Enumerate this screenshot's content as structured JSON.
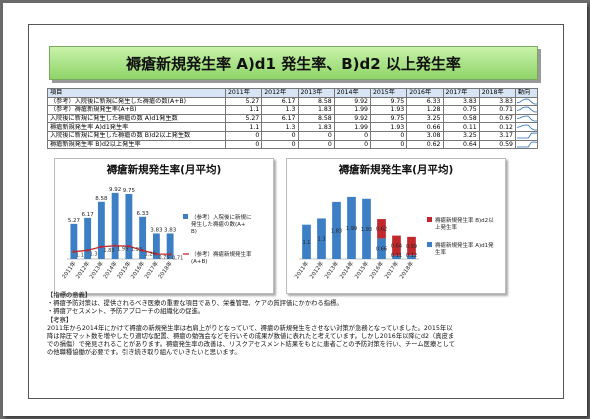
{
  "title": "褥瘡新規発生率 A)d1 発生率、B)d2 以上発生率",
  "table": {
    "headers": [
      "項目",
      "2011年",
      "2012年",
      "2013年",
      "2014年",
      "2015年",
      "2016年",
      "2017年",
      "2018年",
      "動向"
    ],
    "rows": [
      {
        "label": "（参考）入院後に新規に発生した褥瘡の数(A+B)",
        "values": [
          "5.27",
          "6.17",
          "8.58",
          "9.92",
          "9.75",
          "6.33",
          "3.83",
          "3.83"
        ],
        "trend": [
          5.27,
          6.17,
          8.58,
          9.92,
          9.75,
          6.33,
          3.83,
          3.83
        ]
      },
      {
        "label": "（参考）褥瘡新規発生率(A+B)",
        "values": [
          "1.1",
          "1.3",
          "1.83",
          "1.99",
          "1.93",
          "1.28",
          "0.75",
          "0.71"
        ],
        "trend": [
          1.1,
          1.3,
          1.83,
          1.99,
          1.93,
          1.28,
          0.75,
          0.71
        ]
      },
      {
        "label": "入院後に新規に発生した褥瘡の数 A)d1発生数",
        "values": [
          "5.27",
          "6.17",
          "8.58",
          "9.92",
          "9.75",
          "3.25",
          "0.58",
          "0.67"
        ],
        "trend": [
          5.27,
          6.17,
          8.58,
          9.92,
          9.75,
          3.25,
          0.58,
          0.67
        ]
      },
      {
        "label": "褥瘡新規発生率 A)d1発生率",
        "values": [
          "1.1",
          "1.3",
          "1.83",
          "1.99",
          "1.93",
          "0.66",
          "0.11",
          "0.12"
        ],
        "trend": [
          1.1,
          1.3,
          1.83,
          1.99,
          1.93,
          0.66,
          0.11,
          0.12
        ]
      },
      {
        "label": "入院後に新規に発生した褥瘡の数 B)d2以上発生数",
        "values": [
          "0",
          "0",
          "0",
          "0",
          "0",
          "3.08",
          "3.25",
          "3.17"
        ],
        "trend": [
          0,
          0,
          0,
          0,
          0,
          3.08,
          3.25,
          3.17
        ]
      },
      {
        "label": "褥瘡新規発生率 B)d2以上発生率",
        "values": [
          "0",
          "0",
          "0",
          "0",
          "0",
          "0.62",
          "0.64",
          "0.59"
        ],
        "trend": [
          0,
          0,
          0,
          0,
          0,
          0.62,
          0.64,
          0.59
        ]
      }
    ]
  },
  "chart_data": [
    {
      "type": "bar",
      "title": "褥瘡新規発生率(月平均)",
      "categories": [
        "2011年",
        "2012年",
        "2013年",
        "2014年",
        "2015年",
        "2016年",
        "2017年",
        "2018年"
      ],
      "series": [
        {
          "name": "（参考）入院後に新規に発生した褥瘡の数(A+B)",
          "type": "bar",
          "color": "#3d7fc4",
          "values": [
            5.27,
            6.17,
            8.58,
            9.92,
            9.75,
            6.33,
            3.83,
            3.83
          ]
        },
        {
          "name": "（参考）褥瘡新規発生率(A+B)",
          "type": "line",
          "color": "#c0282d",
          "values": [
            1.1,
            1.3,
            1.83,
            1.99,
            1.93,
            1.28,
            0.75,
            0.71
          ]
        }
      ],
      "data_labels": [
        "5.27",
        "6.17",
        "8.58",
        "9.92",
        "9.75",
        "6.33",
        "3.83",
        "3.83"
      ],
      "line_labels": [
        "1.1",
        "1.3",
        "1.83",
        "1.99",
        "1.93",
        "1.28",
        "0.75",
        "0.71"
      ],
      "ylim": [
        0,
        12
      ]
    },
    {
      "type": "bar",
      "title": "褥瘡新規発生率(月平均)",
      "stacked": true,
      "categories": [
        "2011年",
        "2012年",
        "2013年",
        "2014年",
        "2015年",
        "2016年",
        "2017年",
        "2018年"
      ],
      "series": [
        {
          "name": "褥瘡新規発生率 B)d2以上発生率",
          "color": "#c0282d",
          "values": [
            0,
            0,
            0,
            0,
            0,
            0.62,
            0.64,
            0.59
          ]
        },
        {
          "name": "褥瘡新規発生率 A)d1発生率",
          "color": "#3d7fc4",
          "values": [
            1.1,
            1.3,
            1.83,
            1.99,
            1.93,
            0.66,
            0.11,
            0.12
          ]
        }
      ],
      "data_labels_d1": [
        "1.1",
        "1.3",
        "1.83",
        "1.99",
        "1.93",
        "0.66",
        "0.11",
        "0.12"
      ],
      "data_labels_d2": [
        "",
        "",
        "",
        "",
        "",
        "0.62",
        "0.64",
        "0.59"
      ],
      "ylim": [
        0,
        2.5
      ]
    }
  ],
  "notes": {
    "heading1": "【指標の意義】",
    "lines1": [
      "・褥瘡予防対策は、提供されるべき医療の重要な項目であり、栄養管理、ケアの質評価にかかわる指標。",
      "・褥瘡アセスメント、予防アプローチの組織化の促進。"
    ],
    "heading2": "【考察】",
    "lines2": [
      "2011年から2014年にかけて褥瘡の新規発生率は右肩上がりとなっていて、褥瘡の新規発生をさせない対策が急務となっていました。2015年以",
      "降は除圧マット数を増やしたり適切な配置、褥瘡の勉強会などを行いその成果が数値に表れたと考えています。しかし2016年以降にd2（真皮ま",
      "での損傷）で発見されることがあります。褥瘡発生率の改善は、リスクアセスメント結果をもとに患者ごとの予防対策を行い、チーム医療として",
      "の他職種協働が必要です。引き続き取り組んでいきたいと思います。"
    ]
  }
}
